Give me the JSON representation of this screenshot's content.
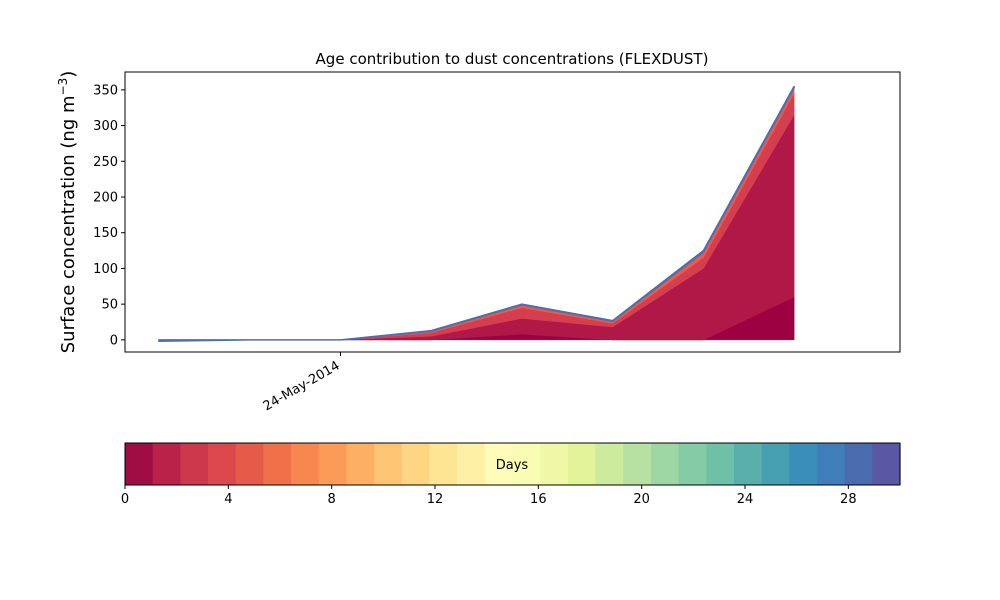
{
  "chart_data": {
    "type": "area",
    "stacked": true,
    "title": "Age contribution to dust concentrations (FLEXDUST)",
    "ylabel": "Surface concentration (ng m",
    "ylabel_sup": "−3",
    "ylabel_close": ")",
    "xlabel": "",
    "ylim": [
      -17,
      375
    ],
    "y_ticks": [
      0,
      50,
      100,
      150,
      200,
      250,
      300,
      350
    ],
    "x": [
      "2014-05-22",
      "2014-05-23",
      "2014-05-24",
      "2014-05-25",
      "2014-05-26",
      "2014-05-27",
      "2014-05-28",
      "2014-05-29"
    ],
    "xlim": [
      "2014-05-21T15:00",
      "2014-05-30T04:00"
    ],
    "x_tick_labels": [
      {
        "date": "2014-05-24",
        "label": "24-May-2014"
      }
    ],
    "series": [
      {
        "color": "#9e0142",
        "values": [
          -2,
          0,
          0,
          0,
          8,
          0,
          0,
          60
        ]
      },
      {
        "color": "#b01847",
        "values": [
          0,
          0,
          0,
          5,
          22,
          18,
          100,
          255
        ]
      },
      {
        "color": "#d53e4f",
        "values": [
          0,
          0,
          0,
          5,
          15,
          5,
          15,
          30
        ]
      },
      {
        "color": "#e95c47",
        "values": [
          0,
          0,
          0,
          2,
          4,
          3,
          8,
          8
        ]
      },
      {
        "color": "#4a6fb5",
        "values": [
          2,
          0,
          0,
          1,
          1,
          1,
          2,
          2
        ]
      }
    ],
    "colorbar": {
      "label": "Days",
      "range": [
        0,
        30
      ],
      "ticks": [
        0,
        4,
        8,
        12,
        16,
        20,
        24,
        28
      ],
      "colors": [
        "#a00d45",
        "#bb2249",
        "#cd384c",
        "#dc494c",
        "#e65a4a",
        "#f0704a",
        "#f7874e",
        "#fb9b58",
        "#fdb064",
        "#fdc473",
        "#fed683",
        "#fee594",
        "#fef1a6",
        "#fffcb9",
        "#f9fcb3",
        "#eff8a6",
        "#e2f399",
        "#cdeb9c",
        "#b7e1a2",
        "#9ed7a4",
        "#84cca5",
        "#6ec1a6",
        "#59b0aa",
        "#46a0b2",
        "#3a8fba",
        "#3f7eb9",
        "#4a6bae",
        "#5a57a4"
      ]
    }
  }
}
